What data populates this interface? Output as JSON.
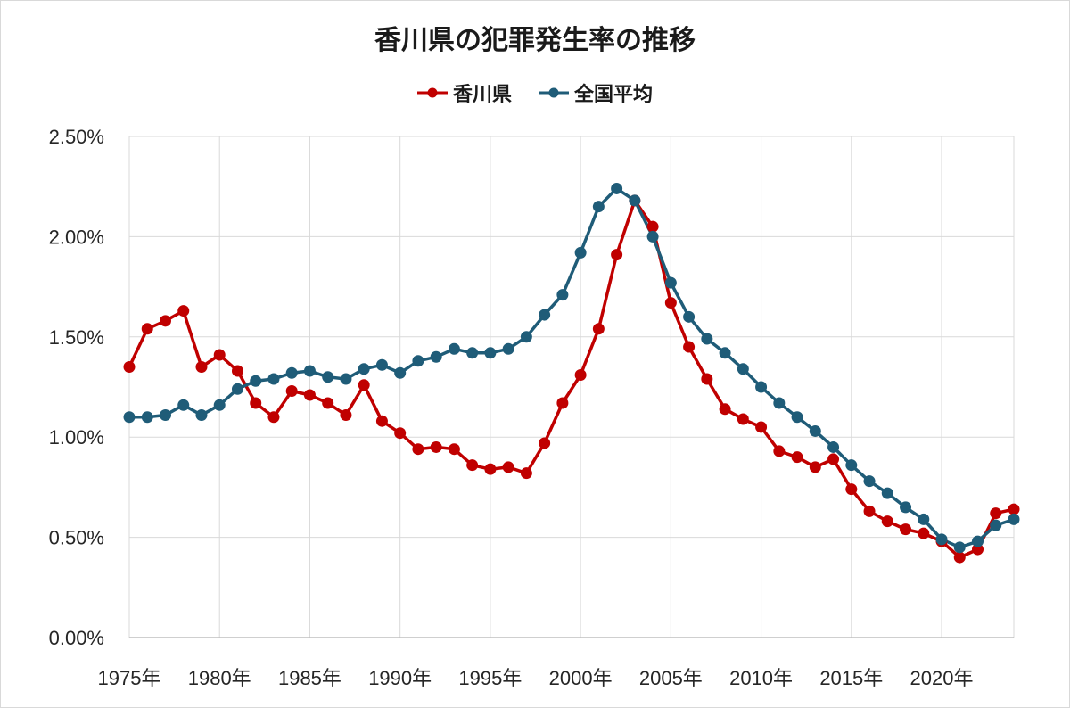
{
  "chart_data": {
    "type": "line",
    "title": "香川県の犯罪発生率の推移",
    "xlabel": "",
    "ylabel": "",
    "x": [
      1975,
      1976,
      1977,
      1978,
      1979,
      1980,
      1981,
      1982,
      1983,
      1984,
      1985,
      1986,
      1987,
      1988,
      1989,
      1990,
      1991,
      1992,
      1993,
      1994,
      1995,
      1996,
      1997,
      1998,
      1999,
      2000,
      2001,
      2002,
      2003,
      2004,
      2005,
      2006,
      2007,
      2008,
      2009,
      2010,
      2011,
      2012,
      2013,
      2014,
      2015,
      2016,
      2017,
      2018,
      2019,
      2020,
      2021,
      2022,
      2023,
      2024
    ],
    "x_tick_labels": [
      "1975年",
      "1980年",
      "1985年",
      "1990年",
      "1995年",
      "2000年",
      "2005年",
      "2010年",
      "2015年",
      "2020年"
    ],
    "x_tick_values": [
      1975,
      1980,
      1985,
      1990,
      1995,
      2000,
      2005,
      2010,
      2015,
      2020
    ],
    "ylim": [
      0,
      2.5
    ],
    "y_tick_labels": [
      "0.00%",
      "0.50%",
      "1.00%",
      "1.50%",
      "2.00%",
      "2.50%"
    ],
    "y_tick_values": [
      0,
      0.5,
      1.0,
      1.5,
      2.0,
      2.5
    ],
    "grid": true,
    "legend_position": "top",
    "series": [
      {
        "name": "香川県",
        "color": "#c00000",
        "values": [
          1.35,
          1.54,
          1.58,
          1.63,
          1.35,
          1.41,
          1.33,
          1.17,
          1.1,
          1.23,
          1.21,
          1.17,
          1.11,
          1.26,
          1.08,
          1.02,
          0.94,
          0.95,
          0.94,
          0.86,
          0.84,
          0.85,
          0.82,
          0.97,
          1.17,
          1.31,
          1.54,
          1.91,
          2.18,
          2.05,
          1.67,
          1.45,
          1.29,
          1.14,
          1.09,
          1.05,
          0.93,
          0.9,
          0.85,
          0.89,
          0.74,
          0.63,
          0.58,
          0.54,
          0.52,
          0.48,
          0.4,
          0.44,
          0.62,
          0.64
        ]
      },
      {
        "name": "全国平均",
        "color": "#1f5c78",
        "values": [
          1.1,
          1.1,
          1.11,
          1.16,
          1.11,
          1.16,
          1.24,
          1.28,
          1.29,
          1.32,
          1.33,
          1.3,
          1.29,
          1.34,
          1.36,
          1.32,
          1.38,
          1.4,
          1.44,
          1.42,
          1.42,
          1.44,
          1.5,
          1.61,
          1.71,
          1.92,
          2.15,
          2.24,
          2.18,
          2.0,
          1.77,
          1.6,
          1.49,
          1.42,
          1.34,
          1.25,
          1.17,
          1.1,
          1.03,
          0.95,
          0.86,
          0.78,
          0.72,
          0.65,
          0.59,
          0.49,
          0.45,
          0.48,
          0.56,
          0.59
        ]
      }
    ]
  }
}
